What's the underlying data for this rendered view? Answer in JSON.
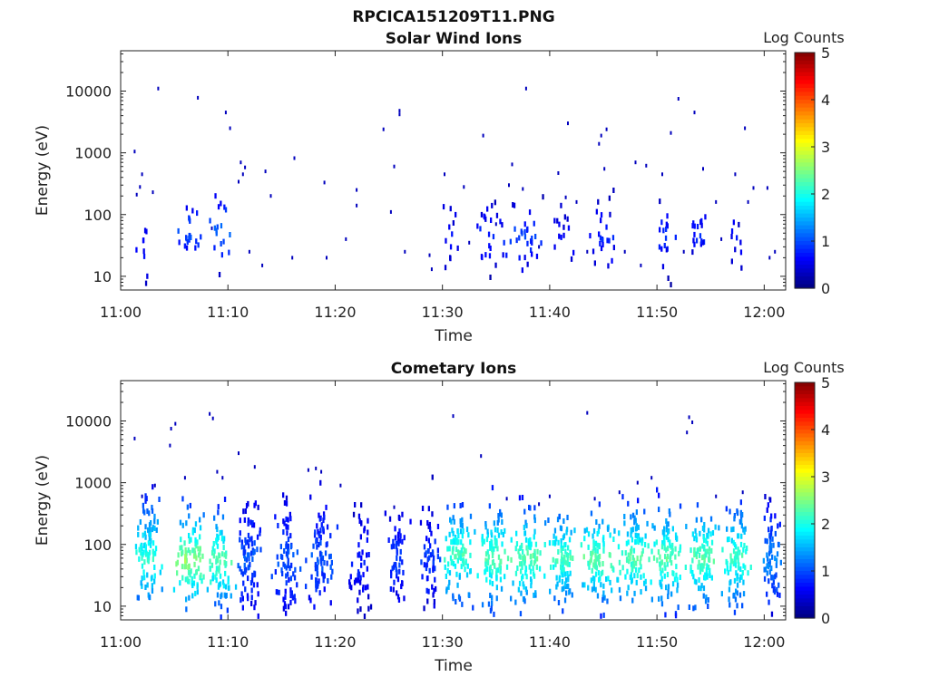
{
  "figure_title": "RPCICA151209T11.PNG",
  "chart_data": [
    {
      "type": "heatmap",
      "title": "Solar Wind Ions",
      "xlabel": "Time",
      "ylabel": "Energy (eV)",
      "colorbar_label": "Log Counts",
      "x_ticks": [
        "11:00",
        "11:10",
        "11:20",
        "11:30",
        "11:40",
        "11:50",
        "12:00"
      ],
      "x_range_minutes": [
        0,
        62
      ],
      "y_scale": "log",
      "y_ticks": [
        10,
        100,
        1000,
        10000
      ],
      "y_tick_labels": [
        "10",
        "100",
        "1000",
        "10000"
      ],
      "y_range": [
        6,
        45000
      ],
      "colorbar_range": [
        0,
        5
      ],
      "colorbar_ticks": [
        "0",
        "1",
        "2",
        "3",
        "4",
        "5"
      ],
      "clusters": [
        {
          "t": 2.0,
          "e": 30,
          "w": 0.8,
          "s": 0.35,
          "n": 10,
          "v": 0.5
        },
        {
          "t": 6.2,
          "e": 55,
          "w": 1.1,
          "s": 0.25,
          "n": 22,
          "v": 0.8
        },
        {
          "t": 9.3,
          "e": 50,
          "w": 0.9,
          "s": 0.3,
          "n": 18,
          "v": 0.9
        },
        {
          "t": 30.8,
          "e": 40,
          "w": 0.7,
          "s": 0.35,
          "n": 12,
          "v": 0.5
        },
        {
          "t": 34.5,
          "e": 45,
          "w": 1.2,
          "s": 0.3,
          "n": 25,
          "v": 0.6
        },
        {
          "t": 37.8,
          "e": 45,
          "w": 1.4,
          "s": 0.3,
          "n": 30,
          "v": 0.7
        },
        {
          "t": 41.5,
          "e": 45,
          "w": 0.9,
          "s": 0.25,
          "n": 14,
          "v": 0.5
        },
        {
          "t": 45.2,
          "e": 45,
          "w": 1.4,
          "s": 0.3,
          "n": 24,
          "v": 0.6
        },
        {
          "t": 50.8,
          "e": 45,
          "w": 0.9,
          "s": 0.3,
          "n": 18,
          "v": 0.6
        },
        {
          "t": 54.0,
          "e": 45,
          "w": 1.2,
          "s": 0.2,
          "n": 18,
          "v": 0.6
        },
        {
          "t": 57.5,
          "e": 40,
          "w": 0.7,
          "s": 0.25,
          "n": 10,
          "v": 0.5
        }
      ],
      "scatter": [
        [
          1.3,
          1050
        ],
        [
          2.0,
          450
        ],
        [
          1.8,
          280
        ],
        [
          3.5,
          11000
        ],
        [
          7.2,
          7800
        ],
        [
          9.8,
          4500
        ],
        [
          10.2,
          2500
        ],
        [
          11.2,
          700
        ],
        [
          11.4,
          450
        ],
        [
          13.5,
          500
        ],
        [
          16.2,
          820
        ],
        [
          19.0,
          330
        ],
        [
          22.0,
          250
        ],
        [
          24.5,
          2400
        ],
        [
          26.0,
          4800
        ],
        [
          26.0,
          4200
        ],
        [
          25.5,
          600
        ],
        [
          30.2,
          450
        ],
        [
          33.8,
          1900
        ],
        [
          36.5,
          650
        ],
        [
          37.8,
          11000
        ],
        [
          40.8,
          470
        ],
        [
          41.7,
          3000
        ],
        [
          44.8,
          1900
        ],
        [
          45.3,
          2400
        ],
        [
          44.6,
          1400
        ],
        [
          45.1,
          550
        ],
        [
          48.0,
          700
        ],
        [
          49.0,
          620
        ],
        [
          50.5,
          450
        ],
        [
          51.3,
          2100
        ],
        [
          52.0,
          7500
        ],
        [
          53.5,
          4500
        ],
        [
          54.3,
          550
        ],
        [
          57.3,
          450
        ],
        [
          58.2,
          2500
        ],
        [
          59.0,
          270
        ],
        [
          60.3,
          270
        ],
        [
          22.0,
          140
        ],
        [
          14.0,
          200
        ],
        [
          32.0,
          280
        ],
        [
          36.2,
          300
        ],
        [
          37.5,
          260
        ],
        [
          41.5,
          190
        ],
        [
          42.5,
          160
        ],
        [
          55.5,
          160
        ],
        [
          58.5,
          160
        ],
        [
          1.5,
          210
        ],
        [
          3.0,
          230
        ],
        [
          11.0,
          340
        ],
        [
          11.6,
          580
        ],
        [
          8.5,
          60
        ],
        [
          12.0,
          25
        ],
        [
          13.2,
          15
        ],
        [
          16.0,
          20
        ],
        [
          19.2,
          20
        ],
        [
          21.0,
          40
        ],
        [
          25.2,
          110
        ],
        [
          26.5,
          25
        ],
        [
          28.8,
          22
        ],
        [
          29.0,
          13
        ],
        [
          32.5,
          35
        ],
        [
          35.0,
          70
        ],
        [
          39.0,
          30
        ],
        [
          43.5,
          25
        ],
        [
          47.0,
          25
        ],
        [
          48.5,
          15
        ],
        [
          52.5,
          25
        ],
        [
          56.0,
          40
        ],
        [
          60.5,
          20
        ],
        [
          61.0,
          25
        ]
      ]
    },
    {
      "type": "heatmap",
      "title": "Cometary Ions",
      "xlabel": "Time",
      "ylabel": "Energy (eV)",
      "colorbar_label": "Log Counts",
      "x_ticks": [
        "11:00",
        "11:10",
        "11:20",
        "11:30",
        "11:40",
        "11:50",
        "12:00"
      ],
      "x_range_minutes": [
        0,
        62
      ],
      "y_scale": "log",
      "y_ticks": [
        10,
        100,
        1000,
        10000
      ],
      "y_tick_labels": [
        "10",
        "100",
        "1000",
        "10000"
      ],
      "y_range": [
        6,
        45000
      ],
      "colorbar_range": [
        0,
        5
      ],
      "colorbar_ticks": [
        "0",
        "1",
        "2",
        "3",
        "4",
        "5"
      ],
      "clusters": [
        {
          "t": 2.6,
          "e": 60,
          "w": 1.2,
          "s": 0.45,
          "n": 95,
          "v": 1.6
        },
        {
          "t": 6.5,
          "e": 55,
          "w": 1.3,
          "s": 0.4,
          "n": 95,
          "v": 2.0
        },
        {
          "t": 9.2,
          "e": 55,
          "w": 1.1,
          "s": 0.4,
          "n": 80,
          "v": 1.8
        },
        {
          "t": 12.0,
          "e": 60,
          "w": 1.0,
          "s": 0.5,
          "n": 85,
          "v": 0.8
        },
        {
          "t": 15.5,
          "e": 60,
          "w": 1.1,
          "s": 0.5,
          "n": 80,
          "v": 0.8
        },
        {
          "t": 18.6,
          "e": 60,
          "w": 1.1,
          "s": 0.5,
          "n": 85,
          "v": 0.8
        },
        {
          "t": 22.5,
          "e": 55,
          "w": 1.0,
          "s": 0.45,
          "n": 55,
          "v": 0.6
        },
        {
          "t": 25.8,
          "e": 55,
          "w": 0.9,
          "s": 0.45,
          "n": 55,
          "v": 0.7
        },
        {
          "t": 28.8,
          "e": 55,
          "w": 0.9,
          "s": 0.45,
          "n": 55,
          "v": 0.7
        },
        {
          "t": 31.5,
          "e": 70,
          "w": 1.3,
          "s": 0.4,
          "n": 100,
          "v": 1.7
        },
        {
          "t": 34.8,
          "e": 60,
          "w": 1.3,
          "s": 0.4,
          "n": 100,
          "v": 1.8
        },
        {
          "t": 38.0,
          "e": 60,
          "w": 1.3,
          "s": 0.4,
          "n": 100,
          "v": 1.8
        },
        {
          "t": 41.2,
          "e": 60,
          "w": 1.2,
          "s": 0.4,
          "n": 95,
          "v": 1.7
        },
        {
          "t": 44.5,
          "e": 60,
          "w": 1.3,
          "s": 0.4,
          "n": 100,
          "v": 1.8
        },
        {
          "t": 47.8,
          "e": 60,
          "w": 1.3,
          "s": 0.4,
          "n": 100,
          "v": 1.8
        },
        {
          "t": 51.0,
          "e": 60,
          "w": 1.3,
          "s": 0.4,
          "n": 100,
          "v": 1.8
        },
        {
          "t": 54.3,
          "e": 60,
          "w": 1.3,
          "s": 0.4,
          "n": 100,
          "v": 1.8
        },
        {
          "t": 57.5,
          "e": 60,
          "w": 1.2,
          "s": 0.4,
          "n": 95,
          "v": 1.7
        },
        {
          "t": 60.8,
          "e": 60,
          "w": 0.9,
          "s": 0.45,
          "n": 70,
          "v": 1.0
        }
      ],
      "scatter": [
        [
          1.3,
          5200
        ],
        [
          4.7,
          7500
        ],
        [
          5.1,
          9000
        ],
        [
          4.6,
          4000
        ],
        [
          8.3,
          13000
        ],
        [
          8.6,
          11000
        ],
        [
          11.0,
          3000
        ],
        [
          9.0,
          1500
        ],
        [
          9.5,
          1200
        ],
        [
          18.2,
          1700
        ],
        [
          18.7,
          1500
        ],
        [
          17.5,
          1600
        ],
        [
          31.0,
          12000
        ],
        [
          33.6,
          2700
        ],
        [
          43.5,
          13500
        ],
        [
          53.0,
          11500
        ],
        [
          53.3,
          9500
        ],
        [
          52.8,
          6500
        ],
        [
          48.2,
          1000
        ],
        [
          49.5,
          1200
        ],
        [
          40.0,
          600
        ],
        [
          44.2,
          550
        ],
        [
          46.5,
          700
        ],
        [
          12.5,
          1800
        ],
        [
          6.0,
          1200
        ],
        [
          20.5,
          900
        ],
        [
          25.5,
          400
        ],
        [
          36.0,
          550
        ],
        [
          39.0,
          450
        ],
        [
          55.5,
          600
        ],
        [
          58.0,
          700
        ],
        [
          60.5,
          550
        ],
        [
          2.0,
          600
        ],
        [
          3.2,
          900
        ]
      ]
    }
  ]
}
